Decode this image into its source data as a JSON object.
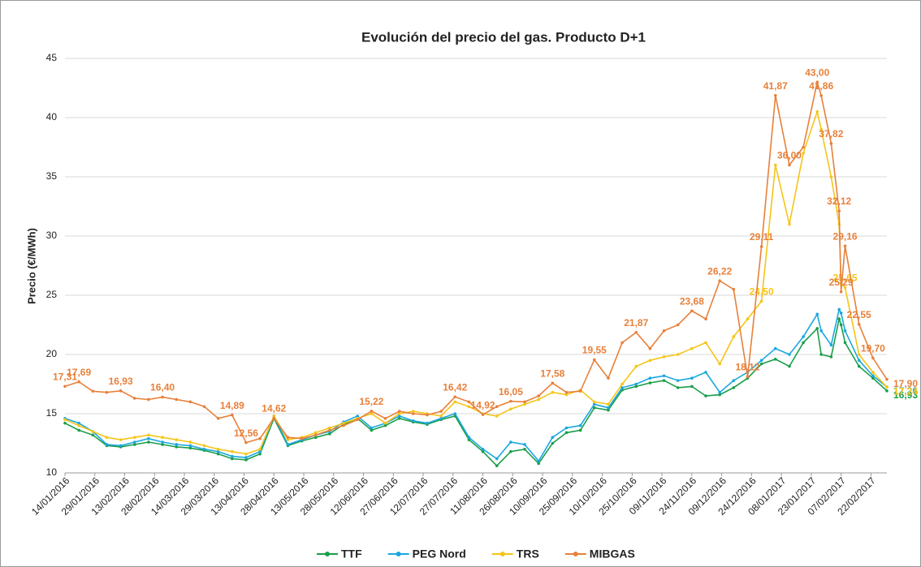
{
  "chart_data": {
    "type": "line",
    "title": "Evolución del precio del gas. Producto D+1",
    "y_label": "Precio (€/MWh)",
    "x": [
      "14/01/2016",
      "21/01/2016",
      "28/01/2016",
      "04/02/2016",
      "11/02/2016",
      "18/02/2016",
      "25/02/2016",
      "03/03/2016",
      "10/03/2016",
      "17/03/2016",
      "24/03/2016",
      "31/03/2016",
      "07/04/2016",
      "14/04/2016",
      "21/04/2016",
      "28/04/2016",
      "05/05/2016",
      "12/05/2016",
      "19/05/2016",
      "26/05/2016",
      "02/06/2016",
      "09/06/2016",
      "16/06/2016",
      "23/06/2016",
      "30/06/2016",
      "07/07/2016",
      "14/07/2016",
      "21/07/2016",
      "28/07/2016",
      "04/08/2016",
      "11/08/2016",
      "18/08/2016",
      "25/08/2016",
      "01/09/2016",
      "08/09/2016",
      "15/09/2016",
      "22/09/2016",
      "29/09/2016",
      "06/10/2016",
      "13/10/2016",
      "20/10/2016",
      "27/10/2016",
      "03/11/2016",
      "10/11/2016",
      "17/11/2016",
      "24/11/2016",
      "01/12/2016",
      "08/12/2016",
      "15/12/2016",
      "22/12/2016",
      "29/12/2016",
      "05/01/2017",
      "12/01/2017",
      "19/01/2017",
      "26/01/2017",
      "28/01/2017",
      "02/02/2017",
      "06/02/2017",
      "07/02/2017",
      "09/02/2017",
      "16/02/2017",
      "23/02/2017",
      "02/03/2017"
    ],
    "xlim": [
      "14/01/2016",
      "02/03/2017"
    ],
    "xticks": [
      "14/01/2016",
      "29/01/2016",
      "13/02/2016",
      "28/02/2016",
      "14/03/2016",
      "29/03/2016",
      "13/04/2016",
      "28/04/2016",
      "13/05/2016",
      "28/05/2016",
      "12/06/2016",
      "27/06/2016",
      "12/07/2016",
      "27/07/2016",
      "11/08/2016",
      "26/08/2016",
      "10/09/2016",
      "25/09/2016",
      "10/10/2016",
      "25/10/2016",
      "09/11/2016",
      "24/11/2016",
      "09/12/2016",
      "24/12/2016",
      "08/01/2017",
      "23/01/2017",
      "07/02/2017",
      "22/02/2017"
    ],
    "ylim": [
      10,
      45
    ],
    "yticks": [
      10,
      15,
      20,
      25,
      30,
      35,
      40,
      45
    ],
    "grid": true,
    "legend": "bottom",
    "series": [
      {
        "name": "TTF",
        "color": "#1a9e4a",
        "values": [
          14.2,
          13.6,
          13.2,
          12.3,
          12.2,
          12.4,
          12.6,
          12.4,
          12.2,
          12.1,
          11.9,
          11.6,
          11.2,
          11.1,
          11.6,
          14.6,
          12.3,
          12.7,
          13.0,
          13.3,
          14.1,
          14.6,
          13.6,
          14.0,
          14.6,
          14.3,
          14.1,
          14.5,
          14.8,
          12.8,
          11.8,
          10.6,
          11.8,
          12.0,
          10.8,
          12.5,
          13.4,
          13.6,
          15.5,
          15.3,
          17.0,
          17.3,
          17.6,
          17.8,
          17.2,
          17.3,
          16.5,
          16.6,
          17.2,
          18.0,
          19.2,
          19.6,
          19.0,
          21.0,
          22.2,
          20.0,
          19.8,
          23.0,
          22.5,
          21.0,
          19.0,
          18.0,
          16.93
        ],
        "value_labels": [
          null,
          null,
          null,
          null,
          null,
          null,
          null,
          null,
          null,
          null,
          null,
          null,
          null,
          null,
          null,
          null,
          null,
          null,
          null,
          null,
          null,
          null,
          null,
          null,
          null,
          null,
          null,
          null,
          null,
          null,
          null,
          null,
          null,
          null,
          null,
          null,
          null,
          null,
          null,
          null,
          null,
          null,
          null,
          null,
          null,
          null,
          null,
          null,
          null,
          null,
          null,
          null,
          null,
          null,
          null,
          null,
          null,
          null,
          null,
          null,
          null,
          null,
          "16,93"
        ]
      },
      {
        "name": "PEG Nord",
        "color": "#1aa7e0",
        "values": [
          14.6,
          14.2,
          13.5,
          12.4,
          12.3,
          12.6,
          12.9,
          12.6,
          12.4,
          12.3,
          12.0,
          11.8,
          11.4,
          11.3,
          11.8,
          14.8,
          12.4,
          12.8,
          13.2,
          13.5,
          14.3,
          14.8,
          13.8,
          14.2,
          14.8,
          14.4,
          14.2,
          14.6,
          15.0,
          13.0,
          12.0,
          11.2,
          12.6,
          12.4,
          11.0,
          13.0,
          13.8,
          14.0,
          15.8,
          15.5,
          17.2,
          17.5,
          18.0,
          18.2,
          17.8,
          18.0,
          18.5,
          16.8,
          17.8,
          18.5,
          19.5,
          20.5,
          20.0,
          21.5,
          23.4,
          22.0,
          20.8,
          23.8,
          23.5,
          22.0,
          19.5,
          18.2,
          17.26
        ],
        "value_labels": [
          null,
          null,
          null,
          null,
          null,
          null,
          null,
          null,
          null,
          null,
          null,
          null,
          null,
          null,
          null,
          null,
          null,
          null,
          null,
          null,
          null,
          null,
          null,
          null,
          null,
          null,
          null,
          null,
          null,
          null,
          null,
          null,
          null,
          null,
          null,
          null,
          null,
          null,
          null,
          null,
          null,
          null,
          null,
          null,
          null,
          null,
          null,
          null,
          null,
          null,
          null,
          null,
          null,
          null,
          null,
          null,
          null,
          null,
          null,
          null,
          null,
          null,
          "17,26"
        ]
      },
      {
        "name": "TRS",
        "color": "#f5c518",
        "values": [
          14.5,
          14.0,
          13.5,
          13.0,
          12.8,
          13.0,
          13.2,
          13.0,
          12.8,
          12.6,
          12.3,
          12.0,
          11.8,
          11.6,
          12.0,
          14.8,
          12.8,
          13.0,
          13.4,
          13.8,
          14.2,
          14.6,
          15.0,
          14.2,
          15.0,
          15.2,
          15.0,
          14.8,
          16.0,
          15.6,
          15.0,
          14.8,
          15.4,
          15.8,
          16.2,
          16.8,
          16.6,
          17.0,
          16.0,
          15.8,
          17.5,
          19.0,
          19.5,
          19.8,
          20.0,
          20.5,
          21.0,
          19.2,
          21.5,
          23.0,
          24.5,
          36.0,
          31.0,
          37.0,
          40.5,
          39.0,
          35.0,
          31.0,
          26.0,
          25.65,
          20.0,
          18.5,
          17.24
        ],
        "value_labels": [
          null,
          null,
          null,
          null,
          null,
          null,
          null,
          null,
          null,
          null,
          null,
          null,
          null,
          null,
          null,
          null,
          null,
          null,
          null,
          null,
          null,
          null,
          null,
          null,
          null,
          null,
          null,
          null,
          null,
          null,
          null,
          null,
          null,
          null,
          null,
          null,
          null,
          null,
          null,
          null,
          null,
          null,
          null,
          null,
          null,
          null,
          null,
          null,
          null,
          null,
          "24,50",
          null,
          null,
          null,
          null,
          null,
          null,
          null,
          null,
          "25,65",
          null,
          null,
          "17,24"
        ]
      },
      {
        "name": "MIBGAS",
        "color": "#e8803a",
        "values": [
          17.31,
          17.69,
          16.9,
          16.8,
          16.93,
          16.3,
          16.2,
          16.4,
          16.2,
          16.0,
          15.6,
          14.6,
          14.89,
          12.56,
          12.9,
          14.62,
          13.0,
          12.9,
          13.2,
          13.6,
          14.0,
          14.5,
          15.22,
          14.6,
          15.2,
          15.0,
          14.9,
          15.2,
          16.42,
          16.0,
          14.92,
          15.6,
          16.05,
          16.0,
          16.5,
          17.58,
          16.8,
          16.9,
          19.55,
          18.0,
          21.0,
          21.87,
          20.5,
          22.0,
          22.5,
          23.68,
          23.0,
          26.22,
          25.5,
          18.12,
          29.11,
          41.87,
          36.0,
          37.5,
          43.0,
          41.86,
          37.82,
          32.12,
          25.29,
          29.16,
          22.55,
          19.7,
          17.9
        ],
        "value_labels": [
          "17,31",
          "17,69",
          null,
          null,
          "16,93",
          null,
          null,
          "16,40",
          null,
          null,
          null,
          null,
          "14,89",
          "12,56",
          null,
          "14,62",
          null,
          null,
          null,
          null,
          null,
          null,
          "15,22",
          null,
          null,
          null,
          null,
          null,
          "16,42",
          null,
          "14,92",
          null,
          "16,05",
          null,
          null,
          "17,58",
          null,
          null,
          "19,55",
          null,
          null,
          "21,87",
          null,
          null,
          null,
          "23,68",
          null,
          "26,22",
          null,
          "18,12",
          "29,11",
          "41,87",
          "36,00",
          null,
          "43,00",
          "41,86",
          "37,82",
          "32,12",
          "25,29",
          "29,16",
          "22,55",
          "19,70",
          "17,90"
        ]
      }
    ]
  }
}
